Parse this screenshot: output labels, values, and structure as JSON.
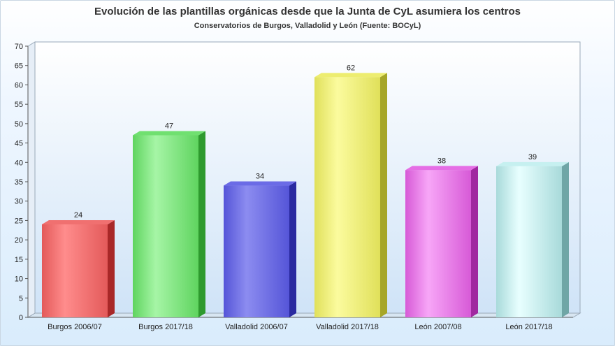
{
  "chart_data": {
    "type": "bar",
    "title": "Evolución de las plantillas orgánicas desde que la Junta de CyL asumiera los centros",
    "subtitle": "Conservatorios de Burgos, Valladolid y León (Fuente: BOCyL)",
    "categories": [
      "Burgos 2006/07",
      "Burgos 2017/18",
      "Valladolid 2006/07",
      "Valladolid 2017/18",
      "León 2007/08",
      "León 2017/18"
    ],
    "values": [
      24,
      47,
      34,
      62,
      38,
      39
    ],
    "ylim": [
      0,
      70
    ],
    "yticks": [
      0,
      5,
      10,
      15,
      20,
      25,
      30,
      35,
      40,
      45,
      50,
      55,
      60,
      65,
      70
    ],
    "grid": false,
    "legend": "none",
    "colors": [
      {
        "front": "#e35a5a",
        "light": "#ff8c8c",
        "side": "#a82828",
        "top": "#f07070"
      },
      {
        "front": "#5fd45f",
        "light": "#a6f5a6",
        "side": "#2e9a2e",
        "top": "#70e070"
      },
      {
        "front": "#5555d8",
        "light": "#8c8cf0",
        "side": "#2a2aa0",
        "top": "#6b6be6"
      },
      {
        "front": "#e0e05a",
        "light": "#fbfb9e",
        "side": "#a6a628",
        "top": "#eded70"
      },
      {
        "front": "#d75ad7",
        "light": "#f7a6f7",
        "side": "#a028a0",
        "top": "#e56ee5"
      },
      {
        "front": "#a8dada",
        "light": "#e8ffff",
        "side": "#6fa6a6",
        "top": "#c6f0f0"
      }
    ]
  }
}
